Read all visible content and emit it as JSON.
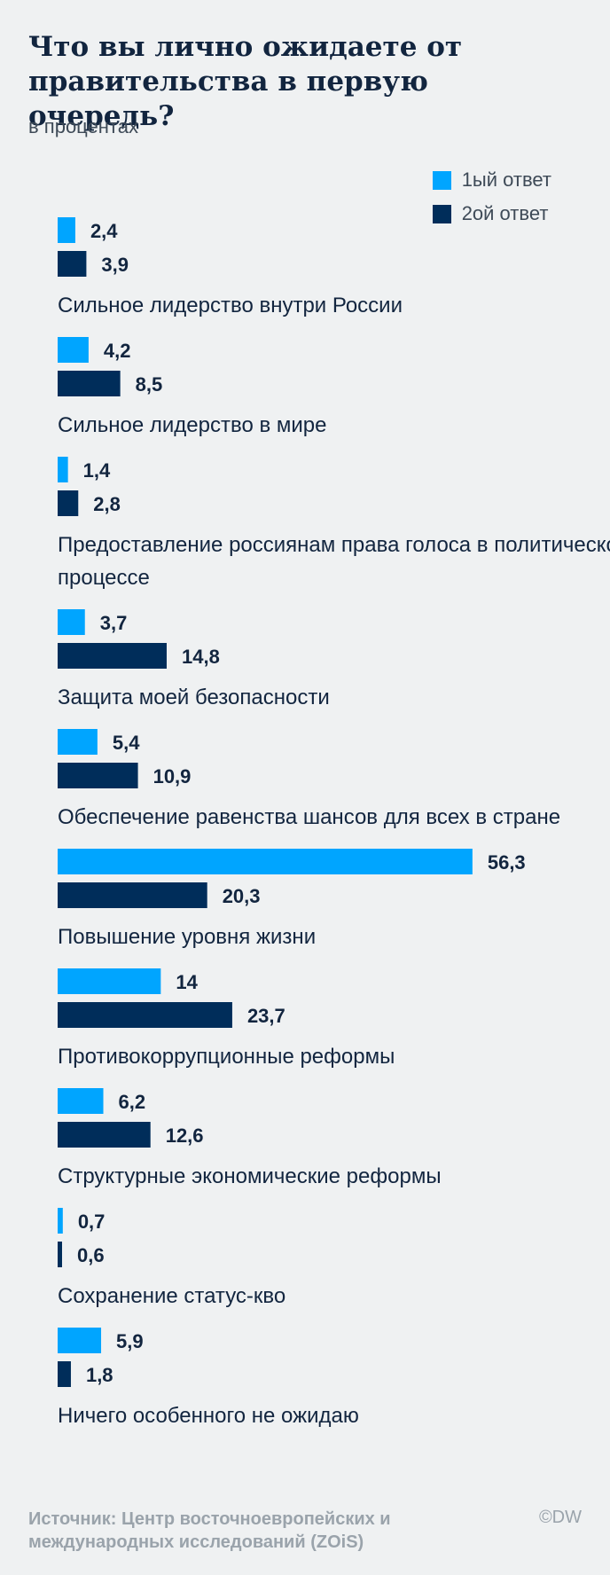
{
  "header": {
    "title": "Что вы лично ожидаете от правительства в первую очередь?",
    "subtitle": "в процентах"
  },
  "legend": [
    {
      "label": "1ый ответ",
      "color": "#00a5ff"
    },
    {
      "label": "2ой ответ",
      "color": "#002d5a"
    }
  ],
  "chart_data": {
    "type": "bar",
    "orientation": "horizontal",
    "title": "Что вы лично ожидаете от правительства в первую очередь?",
    "subtitle": "в процентах",
    "categories": [
      "Сильное лидерство внутри России",
      "Сильное лидерство в мире",
      "Предоставление россиянам права голоса в политическом процессе",
      "Защита моей безопасности",
      "Обеспечение равенства шансов для всех в стране",
      "Повышение уровня жизни",
      "Противокоррупционные реформы",
      "Структурные экономические реформы",
      "Сохранение статус-кво",
      "Ничего особенного не ожидаю"
    ],
    "series": [
      {
        "name": "1ый ответ",
        "color": "#00a5ff",
        "values": [
          2.4,
          4.2,
          1.4,
          3.7,
          5.4,
          56.3,
          14,
          6.2,
          0.7,
          5.9
        ],
        "labels": [
          "2,4",
          "4,2",
          "1,4",
          "3,7",
          "5,4",
          "56,3",
          "14",
          "6,2",
          "0,7",
          "5,9"
        ]
      },
      {
        "name": "2ой ответ",
        "color": "#002d5a",
        "values": [
          3.9,
          8.5,
          2.8,
          14.8,
          10.9,
          20.3,
          23.7,
          12.6,
          0.6,
          1.8
        ],
        "labels": [
          "3,9",
          "8,5",
          "2,8",
          "14,8",
          "10,9",
          "20,3",
          "23,7",
          "12,6",
          "0,6",
          "1,8"
        ]
      }
    ],
    "legend_position": "top-right",
    "grid": false
  },
  "footer": {
    "source": "Источник: Центр восточноевропейских и международных исследований (ZOiS)",
    "credit": "©DW"
  }
}
